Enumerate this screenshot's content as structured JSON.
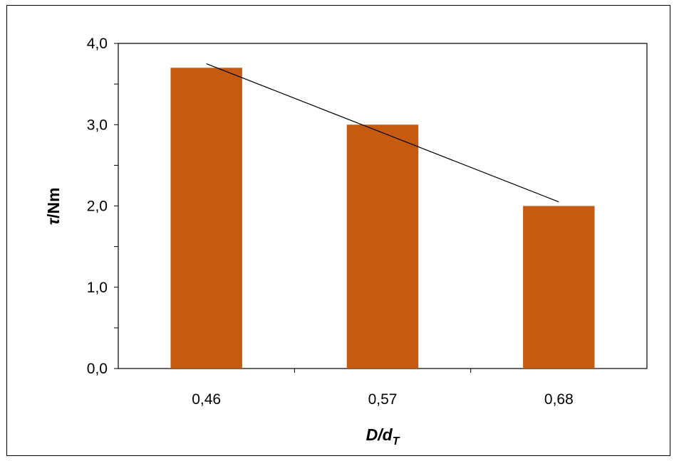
{
  "chart_data": {
    "type": "bar",
    "categories": [
      "0,46",
      "0,57",
      "0,68"
    ],
    "series": [
      {
        "values": [
          3.7,
          3.0,
          2.0
        ],
        "color": "#C55A11"
      }
    ],
    "trendline": {
      "type": "linear",
      "color": "#000000"
    },
    "xlabel": {
      "main": "D/d",
      "sub": "T"
    },
    "ylabel": {
      "symbol": "τ",
      "unit": "/Nm"
    },
    "ylim": [
      0,
      4
    ],
    "yticks": [
      "0,0",
      "1,0",
      "2,0",
      "3,0",
      "4,0"
    ],
    "y_minor_step": 0.5,
    "grid": false,
    "legend": "none"
  }
}
